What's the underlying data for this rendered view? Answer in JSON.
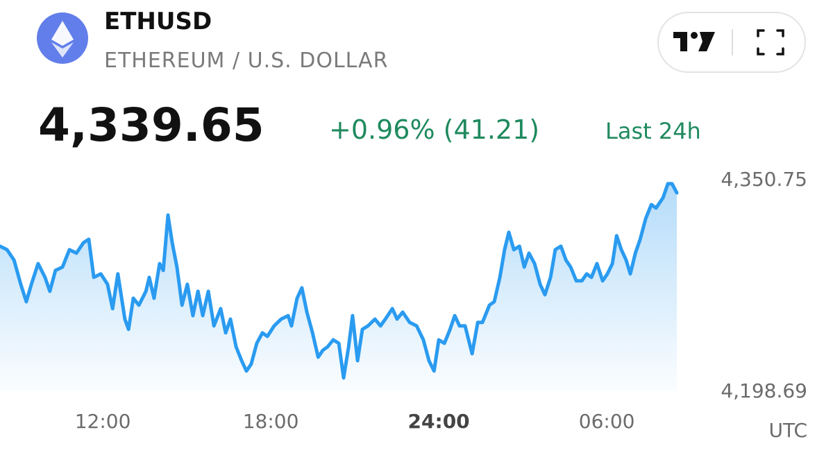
{
  "header": {
    "symbol": "ETHUSD",
    "name": "ETHEREUM / U.S. DOLLAR",
    "price": "4,339.65",
    "change": "+0.96% (41.21)",
    "period": "Last 24h"
  },
  "chart_data": {
    "type": "line",
    "color": "#2a9bf0",
    "x_label": "UTC",
    "xlim": [
      8.33,
      32.5
    ],
    "xticks": [
      {
        "value": 12,
        "label": "12:00"
      },
      {
        "value": 18,
        "label": "18:00"
      },
      {
        "value": 24,
        "label": "24:00"
      },
      {
        "value": 30,
        "label": "06:00"
      }
    ],
    "ylim": [
      4198.69,
      4350.75
    ],
    "yticks": [
      {
        "value": 4198.69,
        "label": "4,198.69"
      },
      {
        "value": 4350.75,
        "label": "4,350.75"
      }
    ],
    "x": [
      8.33,
      8.58,
      8.83,
      9.07,
      9.27,
      9.45,
      9.69,
      9.94,
      10.11,
      10.31,
      10.56,
      10.81,
      11.06,
      11.31,
      11.5,
      11.68,
      11.93,
      12.17,
      12.35,
      12.54,
      12.79,
      12.92,
      13.09,
      13.29,
      13.54,
      13.66,
      13.83,
      14.03,
      14.16,
      14.33,
      14.48,
      14.65,
      14.83,
      15.02,
      15.22,
      15.4,
      15.57,
      15.77,
      15.97,
      16.21,
      16.39,
      16.56,
      16.76,
      16.96,
      17.13,
      17.3,
      17.5,
      17.7,
      17.88,
      18.12,
      18.37,
      18.62,
      18.74,
      18.94,
      19.11,
      19.29,
      19.49,
      19.69,
      19.86,
      20.03,
      20.23,
      20.43,
      20.6,
      20.78,
      20.92,
      21.1,
      21.27,
      21.47,
      21.72,
      21.92,
      22.09,
      22.34,
      22.51,
      22.71,
      22.96,
      23.21,
      23.45,
      23.65,
      23.83,
      24.0,
      24.2,
      24.4,
      24.57,
      24.74,
      24.94,
      25.19,
      25.39,
      25.56,
      25.81,
      25.98,
      26.18,
      26.35,
      26.5,
      26.68,
      26.88,
      27.05,
      27.22,
      27.42,
      27.62,
      27.79,
      27.99,
      28.16,
      28.36,
      28.54,
      28.71,
      28.91,
      29.11,
      29.28,
      29.45,
      29.65,
      29.85,
      30.02,
      30.2,
      30.35,
      30.52,
      30.69,
      30.84,
      31.02,
      31.19,
      31.39,
      31.59,
      31.76,
      32.01,
      32.18,
      32.33,
      32.5
    ],
    "values": [
      4302.4,
      4299.9,
      4292.4,
      4275.0,
      4262.5,
      4275.0,
      4289.9,
      4280.0,
      4270.0,
      4285.0,
      4287.4,
      4299.9,
      4297.4,
      4304.9,
      4307.4,
      4280.0,
      4282.5,
      4275.0,
      4257.5,
      4282.5,
      4250.0,
      4242.6,
      4265.0,
      4260.0,
      4270.0,
      4280.0,
      4265.0,
      4289.9,
      4285.0,
      4324.8,
      4304.9,
      4287.4,
      4260.0,
      4275.0,
      4252.5,
      4270.0,
      4252.5,
      4270.0,
      4245.1,
      4257.5,
      4240.1,
      4250.0,
      4230.1,
      4220.1,
      4212.7,
      4217.6,
      4232.6,
      4240.1,
      4237.6,
      4245.1,
      4250.0,
      4252.5,
      4245.1,
      4265.0,
      4272.5,
      4255.0,
      4240.1,
      4222.6,
      4227.6,
      4230.1,
      4235.1,
      4232.6,
      4207.7,
      4230.1,
      4252.5,
      4220.1,
      4242.6,
      4245.1,
      4250.0,
      4245.1,
      4250.0,
      4257.5,
      4250.0,
      4255.0,
      4247.6,
      4245.1,
      4235.1,
      4220.1,
      4212.7,
      4235.1,
      4232.6,
      4242.6,
      4252.5,
      4245.1,
      4245.1,
      4225.1,
      4247.6,
      4247.6,
      4260.0,
      4262.5,
      4280.0,
      4299.9,
      4312.4,
      4299.9,
      4302.4,
      4287.4,
      4297.4,
      4289.9,
      4275.0,
      4267.5,
      4280.0,
      4299.9,
      4302.4,
      4292.4,
      4287.4,
      4277.5,
      4277.5,
      4282.5,
      4280.0,
      4289.9,
      4277.5,
      4282.5,
      4289.9,
      4309.9,
      4299.9,
      4292.4,
      4282.5,
      4297.4,
      4307.4,
      4322.3,
      4332.3,
      4329.8,
      4337.3,
      4347.3,
      4347.3,
      4340.8
    ]
  }
}
